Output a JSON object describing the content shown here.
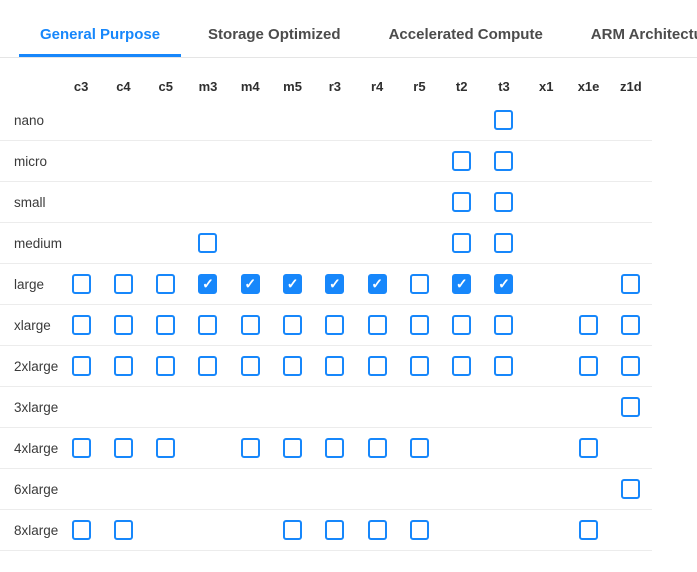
{
  "colors": {
    "accent": "#1787fb",
    "tab_inactive": "#4c4c4c",
    "header_text": "#2f2f2f",
    "row_label": "#3a3a3a",
    "separator": "#ececec",
    "tabbar_border": "#e5e5e5"
  },
  "icons": {
    "check_glyph": "✓"
  },
  "tabs": [
    {
      "label": "General Purpose",
      "active": true
    },
    {
      "label": "Storage Optimized",
      "active": false
    },
    {
      "label": "Accelerated Compute",
      "active": false
    },
    {
      "label": "ARM Architecture",
      "active": false
    }
  ],
  "matrix": {
    "columns": [
      "c3",
      "c4",
      "c5",
      "m3",
      "m4",
      "m5",
      "r3",
      "r4",
      "r5",
      "t2",
      "t3",
      "x1",
      "x1e",
      "z1d"
    ],
    "rows": [
      {
        "label": "nano",
        "cells": [
          null,
          null,
          null,
          null,
          null,
          null,
          null,
          null,
          null,
          null,
          0,
          null,
          null,
          null
        ]
      },
      {
        "label": "micro",
        "cells": [
          null,
          null,
          null,
          null,
          null,
          null,
          null,
          null,
          null,
          0,
          0,
          null,
          null,
          null
        ]
      },
      {
        "label": "small",
        "cells": [
          null,
          null,
          null,
          null,
          null,
          null,
          null,
          null,
          null,
          0,
          0,
          null,
          null,
          null
        ]
      },
      {
        "label": "medium",
        "cells": [
          null,
          null,
          null,
          0,
          null,
          null,
          null,
          null,
          null,
          0,
          0,
          null,
          null,
          null
        ]
      },
      {
        "label": "large",
        "cells": [
          0,
          0,
          0,
          1,
          1,
          1,
          1,
          1,
          0,
          1,
          1,
          null,
          null,
          0
        ]
      },
      {
        "label": "xlarge",
        "cells": [
          0,
          0,
          0,
          0,
          0,
          0,
          0,
          0,
          0,
          0,
          0,
          null,
          0,
          0
        ]
      },
      {
        "label": "2xlarge",
        "cells": [
          0,
          0,
          0,
          0,
          0,
          0,
          0,
          0,
          0,
          0,
          0,
          null,
          0,
          0
        ]
      },
      {
        "label": "3xlarge",
        "cells": [
          null,
          null,
          null,
          null,
          null,
          null,
          null,
          null,
          null,
          null,
          null,
          null,
          null,
          0
        ]
      },
      {
        "label": "4xlarge",
        "cells": [
          0,
          0,
          0,
          null,
          0,
          0,
          0,
          0,
          0,
          null,
          null,
          null,
          0,
          null
        ]
      },
      {
        "label": "6xlarge",
        "cells": [
          null,
          null,
          null,
          null,
          null,
          null,
          null,
          null,
          null,
          null,
          null,
          null,
          null,
          0
        ]
      },
      {
        "label": "8xlarge",
        "cells": [
          0,
          0,
          null,
          null,
          null,
          0,
          0,
          0,
          0,
          null,
          null,
          null,
          0,
          null
        ]
      }
    ]
  }
}
